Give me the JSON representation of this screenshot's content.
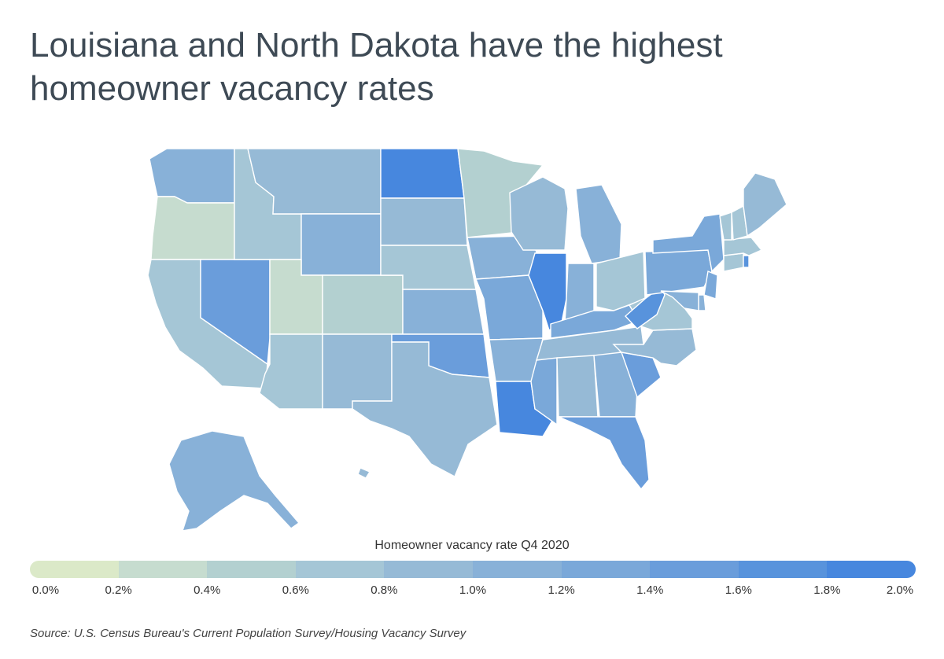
{
  "title_lines": [
    "Louisiana and North Dakota have the highest",
    "homeowner vacancy rates"
  ],
  "legend": {
    "title": "Homeowner vacancy rate Q4 2020",
    "ticks": [
      "0.0%",
      "0.2%",
      "0.4%",
      "0.6%",
      "0.8%",
      "1.0%",
      "1.2%",
      "1.4%",
      "1.6%",
      "1.8%",
      "2.0%"
    ],
    "colors": [
      "#dbe9c8",
      "#c6dccf",
      "#b3d0d0",
      "#a5c6d6",
      "#96bad6",
      "#88b1d8",
      "#7aa8d9",
      "#6a9ddb",
      "#5893dc",
      "#4787de"
    ]
  },
  "source": "Source: U.S. Census Bureau's Current Population Survey/Housing Vacancy Survey",
  "map": {
    "states": [
      {
        "code": "WA",
        "name": "Washington",
        "value": 1.0
      },
      {
        "code": "OR",
        "name": "Oregon",
        "value": 0.2
      },
      {
        "code": "CA",
        "name": "California",
        "value": 0.6
      },
      {
        "code": "NV",
        "name": "Nevada",
        "value": 1.4
      },
      {
        "code": "ID",
        "name": "Idaho",
        "value": 0.6
      },
      {
        "code": "MT",
        "name": "Montana",
        "value": 0.8
      },
      {
        "code": "WY",
        "name": "Wyoming",
        "value": 1.0
      },
      {
        "code": "UT",
        "name": "Utah",
        "value": 0.2
      },
      {
        "code": "CO",
        "name": "Colorado",
        "value": 0.4
      },
      {
        "code": "AZ",
        "name": "Arizona",
        "value": 0.6
      },
      {
        "code": "NM",
        "name": "New Mexico",
        "value": 0.8
      },
      {
        "code": "ND",
        "name": "North Dakota",
        "value": 2.0
      },
      {
        "code": "SD",
        "name": "South Dakota",
        "value": 0.8
      },
      {
        "code": "NE",
        "name": "Nebraska",
        "value": 0.6
      },
      {
        "code": "KS",
        "name": "Kansas",
        "value": 1.0
      },
      {
        "code": "OK",
        "name": "Oklahoma",
        "value": 1.4
      },
      {
        "code": "TX",
        "name": "Texas",
        "value": 0.8
      },
      {
        "code": "MN",
        "name": "Minnesota",
        "value": 0.4
      },
      {
        "code": "IA",
        "name": "Iowa",
        "value": 1.0
      },
      {
        "code": "MO",
        "name": "Missouri",
        "value": 1.2
      },
      {
        "code": "AR",
        "name": "Arkansas",
        "value": 1.0
      },
      {
        "code": "LA",
        "name": "Louisiana",
        "value": 2.0
      },
      {
        "code": "WI",
        "name": "Wisconsin",
        "value": 0.8
      },
      {
        "code": "IL",
        "name": "Illinois",
        "value": 1.8
      },
      {
        "code": "MI",
        "name": "Michigan",
        "value": 1.0
      },
      {
        "code": "IN",
        "name": "Indiana",
        "value": 1.0
      },
      {
        "code": "OH",
        "name": "Ohio",
        "value": 0.6
      },
      {
        "code": "KY",
        "name": "Kentucky",
        "value": 1.2
      },
      {
        "code": "TN",
        "name": "Tennessee",
        "value": 0.8
      },
      {
        "code": "MS",
        "name": "Mississippi",
        "value": 1.2
      },
      {
        "code": "AL",
        "name": "Alabama",
        "value": 0.8
      },
      {
        "code": "GA",
        "name": "Georgia",
        "value": 1.0
      },
      {
        "code": "FL",
        "name": "Florida",
        "value": 1.4
      },
      {
        "code": "SC",
        "name": "South Carolina",
        "value": 1.4
      },
      {
        "code": "NC",
        "name": "North Carolina",
        "value": 0.8
      },
      {
        "code": "VA",
        "name": "Virginia",
        "value": 0.6
      },
      {
        "code": "WV",
        "name": "West Virginia",
        "value": 1.6
      },
      {
        "code": "PA",
        "name": "Pennsylvania",
        "value": 1.2
      },
      {
        "code": "NY",
        "name": "New York",
        "value": 1.2
      },
      {
        "code": "NJ",
        "name": "New Jersey",
        "value": 1.2
      },
      {
        "code": "DE",
        "name": "Delaware",
        "value": 1.0
      },
      {
        "code": "MD",
        "name": "Maryland",
        "value": 1.0
      },
      {
        "code": "CT",
        "name": "Connecticut",
        "value": 0.6
      },
      {
        "code": "RI",
        "name": "Rhode Island",
        "value": 1.6
      },
      {
        "code": "MA",
        "name": "Massachusetts",
        "value": 0.6
      },
      {
        "code": "VT",
        "name": "Vermont",
        "value": 0.6
      },
      {
        "code": "NH",
        "name": "New Hampshire",
        "value": 0.6
      },
      {
        "code": "ME",
        "name": "Maine",
        "value": 0.8
      },
      {
        "code": "AK",
        "name": "Alaska",
        "value": 1.0
      },
      {
        "code": "HI",
        "name": "Hawaii",
        "value": 0.8
      }
    ]
  }
}
